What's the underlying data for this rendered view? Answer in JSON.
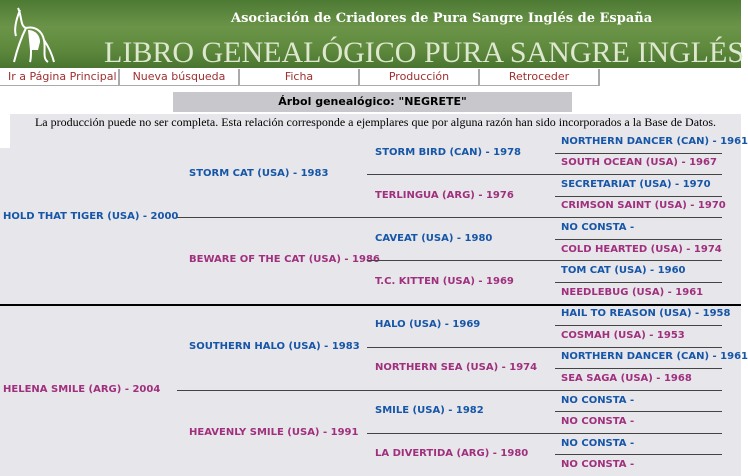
{
  "header": {
    "association": "Asociación de Criadores de Pura Sangre Inglés de España",
    "book_title": "LIBRO GENEALÓGICO PURA SANGRE INGLÉS"
  },
  "nav": [
    "Ir a Página Principal",
    "Nueva búsqueda",
    "Ficha",
    "Producción",
    "Retroceder"
  ],
  "page_title": "Árbol genealógico: \"NEGRETE\"",
  "note": "La producción puede no ser completa. Esta relación corresponde a ejemplares que por alguna razón han sido incorporados a la Base de Datos.",
  "colors": {
    "sire": "#1656a8",
    "dam": "#a0307e"
  },
  "tree": {
    "gen1": [
      "HOLD THAT TIGER (USA) - 2000",
      "HELENA SMILE (ARG) - 2004"
    ],
    "gen2": [
      "STORM CAT (USA) - 1983",
      "BEWARE OF THE CAT (USA) - 1986",
      "SOUTHERN HALO (USA) - 1983",
      "HEAVENLY SMILE (USA) - 1991"
    ],
    "gen3": [
      "STORM BIRD (CAN) - 1978",
      "TERLINGUA (ARG) - 1976",
      "CAVEAT (USA) - 1980",
      "T.C. KITTEN (USA) - 1969",
      "HALO (USA) - 1969",
      "NORTHERN SEA (USA) - 1974",
      "SMILE (USA) - 1982",
      "LA DIVERTIDA (ARG) - 1980"
    ],
    "gen4": [
      "NORTHERN DANCER (CAN) - 1961",
      "SOUTH OCEAN (USA) - 1967",
      "SECRETARIAT (USA) - 1970",
      "CRIMSON SAINT (USA) - 1970",
      "NO CONSTA -",
      "COLD HEARTED (USA) - 1974",
      "TOM CAT (USA) - 1960",
      "NEEDLEBUG (USA) - 1961",
      "HAIL TO REASON (USA) - 1958",
      "COSMAH (USA) - 1953",
      "NORTHERN DANCER (CAN) - 1961",
      "SEA SAGA (USA) - 1968",
      "NO CONSTA -",
      "NO CONSTA -",
      "NO CONSTA -",
      "NO CONSTA -"
    ]
  }
}
